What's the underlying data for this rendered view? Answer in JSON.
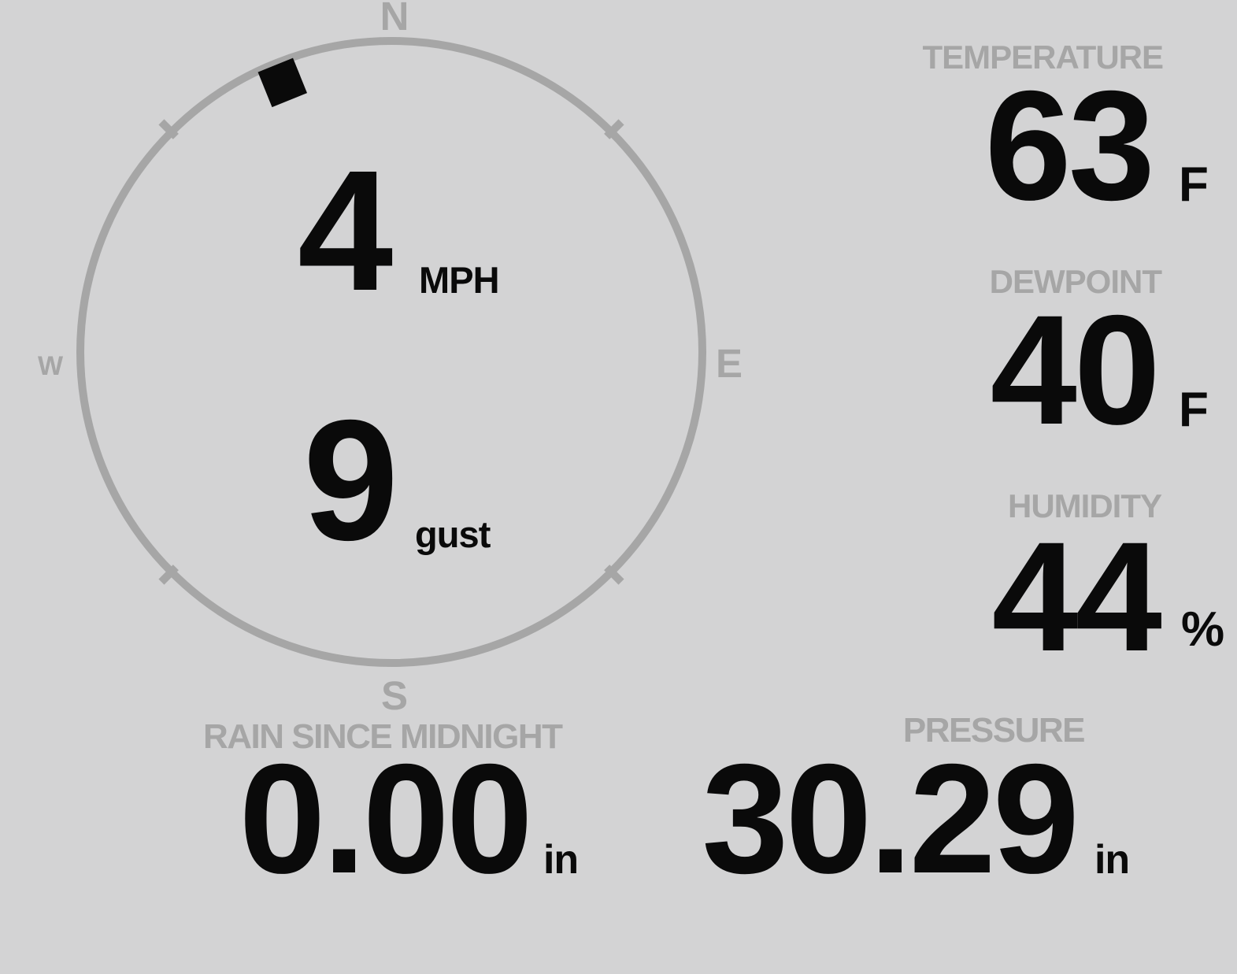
{
  "theme": {
    "background": "#d3d3d4",
    "muted_gray": "#a6a6a6",
    "value_black": "#0a0a0a"
  },
  "wind": {
    "compass": {
      "cardinal_n": "N",
      "cardinal_e": "E",
      "cardinal_s": "S",
      "cardinal_w": "W",
      "direction_degrees": 338
    },
    "speed_value": "4",
    "speed_unit": "MPH",
    "gust_value": "9",
    "gust_unit": "gust"
  },
  "temperature": {
    "label": "TEMPERATURE",
    "value": "63",
    "unit": "F"
  },
  "dewpoint": {
    "label": "DEWPOINT",
    "value": "40",
    "unit": "F"
  },
  "humidity": {
    "label": "HUMIDITY",
    "value": "44",
    "unit": "%"
  },
  "rain": {
    "label": "RAIN SINCE MIDNIGHT",
    "value": "0.00",
    "unit": "in"
  },
  "pressure": {
    "label": "PRESSURE",
    "value": "30.29",
    "unit": "in"
  }
}
